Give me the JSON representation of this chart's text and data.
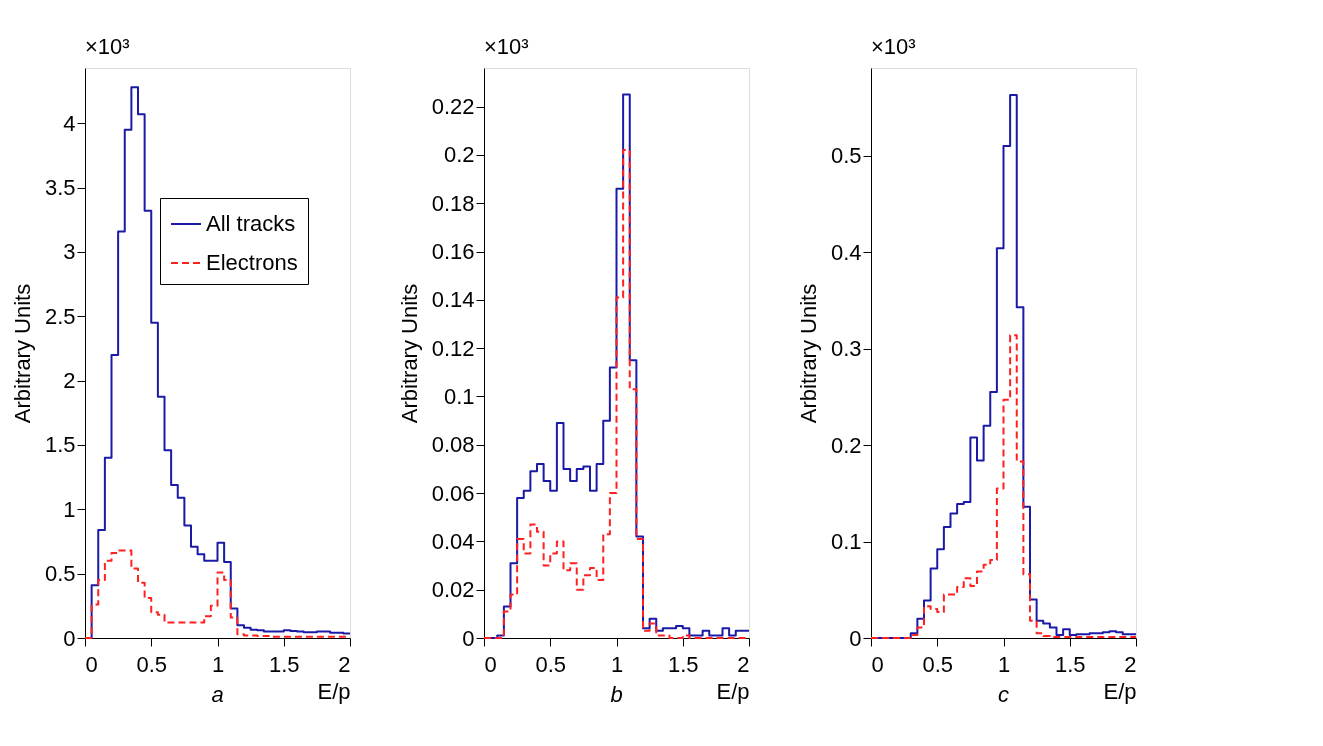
{
  "chart_data": [
    {
      "type": "histogram",
      "ylabel": "Arbitrary Units",
      "xlabel": "E/p",
      "annotations": [
        "×10³",
        "a"
      ],
      "legend": "top right",
      "grid": false,
      "bins": [
        0,
        0.05,
        0.1,
        0.15,
        0.2,
        0.25,
        0.3,
        0.35,
        0.4,
        0.45,
        0.5,
        0.55,
        0.6,
        0.65,
        0.7,
        0.75,
        0.8,
        0.85,
        0.9,
        0.95,
        1,
        1.05,
        1.1,
        1.15,
        1.2,
        1.25,
        1.3,
        1.35,
        1.4,
        1.45,
        1.5,
        1.55,
        1.6,
        1.65,
        1.7,
        1.75,
        1.8,
        1.85,
        1.9,
        1.95,
        2
      ],
      "xlim": [
        0,
        2
      ],
      "xticks": [
        0,
        0.5,
        1,
        1.5,
        2
      ],
      "ylim": [
        0,
        4.43
      ],
      "yticks": [
        0,
        0.5,
        1,
        1.5,
        2,
        2.5,
        3,
        3.5,
        4
      ],
      "series": [
        {
          "name": "All tracks",
          "color": "#1a1aa6",
          "line_style": "solid",
          "values": [
            0,
            0.41,
            0.84,
            1.4,
            2.2,
            3.16,
            3.95,
            4.28,
            4.07,
            3.32,
            2.45,
            1.875,
            1.46,
            1.19,
            1.09,
            0.875,
            0.71,
            0.65,
            0.6,
            0.6,
            0.74,
            0.59,
            0.23,
            0.1,
            0.08,
            0.065,
            0.06,
            0.05,
            0.05,
            0.05,
            0.06,
            0.055,
            0.05,
            0.045,
            0.045,
            0.05,
            0.05,
            0.04,
            0.04,
            0.035
          ]
        },
        {
          "name": "Electrons",
          "color": "#ff2020",
          "line_style": "dashed",
          "values": [
            0,
            0.26,
            0.45,
            0.6,
            0.66,
            0.68,
            0.68,
            0.54,
            0.43,
            0.31,
            0.2,
            0.18,
            0.12,
            0.12,
            0.12,
            0.12,
            0.12,
            0.12,
            0.17,
            0.25,
            0.51,
            0.45,
            0.16,
            0.03,
            0.02,
            0.02,
            0.015,
            0.015,
            0.01,
            0.01,
            0.01,
            0.01,
            0.01,
            0.01,
            0.01,
            0.01,
            0.01,
            0.01,
            0.01,
            0.01
          ]
        }
      ]
    },
    {
      "type": "histogram",
      "ylabel": "Arbitrary Units",
      "xlabel": "E/p",
      "annotations": [
        "×10³",
        "b"
      ],
      "grid": false,
      "bins": [
        0,
        0.05,
        0.1,
        0.15,
        0.2,
        0.25,
        0.3,
        0.35,
        0.4,
        0.45,
        0.5,
        0.55,
        0.6,
        0.65,
        0.7,
        0.75,
        0.8,
        0.85,
        0.9,
        0.95,
        1,
        1.05,
        1.1,
        1.15,
        1.2,
        1.25,
        1.3,
        1.35,
        1.4,
        1.45,
        1.5,
        1.55,
        1.6,
        1.65,
        1.7,
        1.75,
        1.8,
        1.85,
        1.9,
        1.95,
        2
      ],
      "xlim": [
        0,
        2
      ],
      "xticks": [
        0,
        0.5,
        1,
        1.5,
        2
      ],
      "ylim": [
        0,
        0.236
      ],
      "yticks": [
        0,
        0.02,
        0.04,
        0.06,
        0.08,
        0.1,
        0.12,
        0.14,
        0.16,
        0.18,
        0.2,
        0.22
      ],
      "series": [
        {
          "color": "#1a1aa6",
          "line_style": "solid",
          "values": [
            0,
            0,
            0.001,
            0.013,
            0.031,
            0.058,
            0.061,
            0.069,
            0.072,
            0.065,
            0.061,
            0.089,
            0.07,
            0.065,
            0.07,
            0.071,
            0.061,
            0.072,
            0.09,
            0.112,
            0.186,
            0.225,
            0.115,
            0.042,
            0.004,
            0.008,
            0.003,
            0.004,
            0.004,
            0.005,
            0.004,
            0.001,
            0.001,
            0.003,
            0.001,
            0.001,
            0.004,
            0.001,
            0.003,
            0.003
          ]
        },
        {
          "color": "#ff2020",
          "line_style": "dashed",
          "values": [
            0,
            0,
            0,
            0.011,
            0.018,
            0.041,
            0.035,
            0.047,
            0.044,
            0.03,
            0.035,
            0.04,
            0.028,
            0.031,
            0.02,
            0.026,
            0.029,
            0.024,
            0.043,
            0.06,
            0.141,
            0.202,
            0.103,
            0.041,
            0.003,
            0.006,
            0.001,
            0.001,
            0,
            0,
            0.001,
            0,
            0,
            0,
            0,
            0,
            0,
            0,
            0,
            0
          ]
        }
      ]
    },
    {
      "type": "histogram",
      "ylabel": "Arbitrary Units",
      "xlabel": "E/p",
      "annotations": [
        "×10³",
        "c"
      ],
      "grid": false,
      "bins": [
        0,
        0.05,
        0.1,
        0.15,
        0.2,
        0.25,
        0.3,
        0.35,
        0.4,
        0.45,
        0.5,
        0.55,
        0.6,
        0.65,
        0.7,
        0.75,
        0.8,
        0.85,
        0.9,
        0.95,
        1,
        1.05,
        1.1,
        1.15,
        1.2,
        1.25,
        1.3,
        1.35,
        1.4,
        1.45,
        1.5,
        1.55,
        1.6,
        1.65,
        1.7,
        1.75,
        1.8,
        1.85,
        1.9,
        1.95,
        2
      ],
      "xlim": [
        0,
        2
      ],
      "xticks": [
        0,
        0.5,
        1,
        1.5,
        2
      ],
      "ylim": [
        0,
        0.591
      ],
      "yticks": [
        0,
        0.1,
        0.2,
        0.3,
        0.4,
        0.5
      ],
      "series": [
        {
          "color": "#1a1aa6",
          "line_style": "solid",
          "values": [
            0,
            0,
            0,
            0,
            0,
            0,
            0.005,
            0.02,
            0.039,
            0.072,
            0.092,
            0.115,
            0.129,
            0.139,
            0.141,
            0.208,
            0.184,
            0.22,
            0.255,
            0.404,
            0.51,
            0.563,
            0.343,
            0.136,
            0.04,
            0.018,
            0.015,
            0.011,
            0.003,
            0.009,
            0.003,
            0.004,
            0.004,
            0.005,
            0.005,
            0.006,
            0.007,
            0.006,
            0.004,
            0.004
          ]
        },
        {
          "color": "#ff2020",
          "line_style": "dashed",
          "values": [
            0,
            0,
            0,
            0,
            0,
            0,
            0.003,
            0.011,
            0.033,
            0.03,
            0.027,
            0.045,
            0.045,
            0.053,
            0.062,
            0.054,
            0.069,
            0.076,
            0.081,
            0.155,
            0.247,
            0.314,
            0.183,
            0.066,
            0.018,
            0.005,
            0.002,
            0.001,
            0.001,
            0.001,
            0.001,
            0.001,
            0.001,
            0.001,
            0.001,
            0.001,
            0.001,
            0.001,
            0.001,
            0.001
          ]
        }
      ]
    }
  ]
}
